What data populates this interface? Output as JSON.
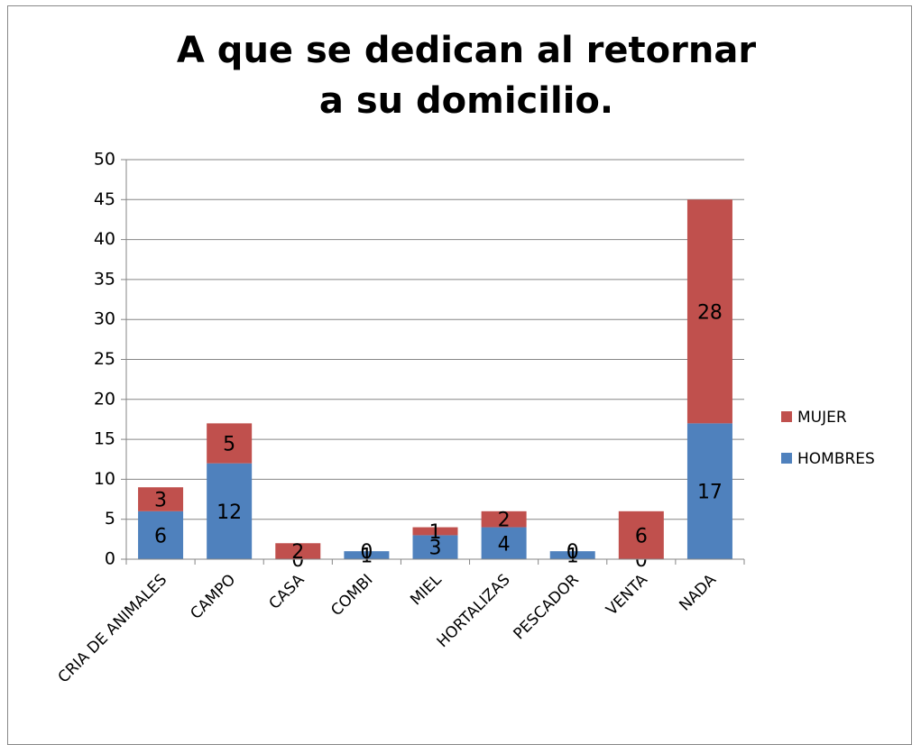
{
  "chart_data": {
    "type": "bar",
    "stacked": true,
    "title": "A que se dedican al retornar a su domicilio.",
    "categories": [
      "CRIA DE ANIMALES",
      "CAMPO",
      "CASA",
      "COMBI",
      "MIEL",
      "HORTALIZAS",
      "PESCADOR",
      "VENTA",
      "NADA"
    ],
    "series": [
      {
        "name": "HOMBRES",
        "color": "#4f81bd",
        "values": [
          6,
          12,
          0,
          1,
          3,
          4,
          1,
          0,
          17
        ]
      },
      {
        "name": "MUJER",
        "color": "#c0504d",
        "values": [
          3,
          5,
          2,
          0,
          1,
          2,
          0,
          6,
          28
        ]
      }
    ],
    "ylim": [
      0,
      50
    ],
    "yticks": [
      0,
      5,
      10,
      15,
      20,
      25,
      30,
      35,
      40,
      45,
      50
    ],
    "grid": true,
    "legend": "right"
  }
}
